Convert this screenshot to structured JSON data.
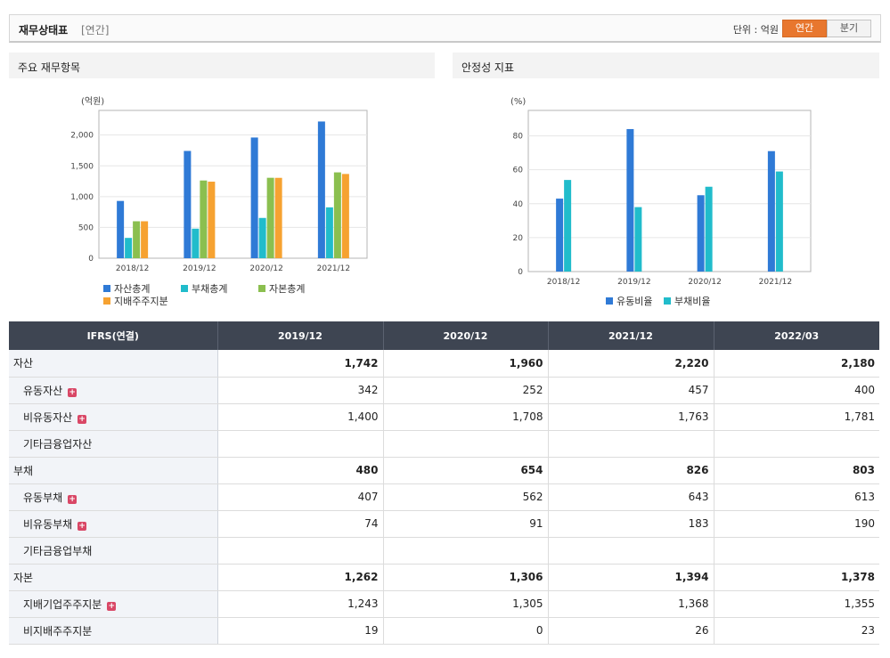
{
  "header": {
    "title": "재무상태표",
    "subtitle": "[연간]",
    "unit_label": "단위 : 억원",
    "toggle": [
      {
        "label": "연간",
        "active": true
      },
      {
        "label": "분기",
        "active": false
      }
    ]
  },
  "panels": {
    "left_title": "주요 재무항목",
    "right_title": "안정성 지표"
  },
  "chart_data": [
    {
      "type": "bar",
      "unit_label": "(억원)",
      "categories": [
        "2018/12",
        "2019/12",
        "2020/12",
        "2021/12"
      ],
      "ylim": [
        0,
        2400
      ],
      "yticks": [
        0,
        500,
        1000,
        1500,
        2000
      ],
      "ytick_labels": [
        "0",
        "500",
        "1,000",
        "1,500",
        "2,000"
      ],
      "series": [
        {
          "name": "자산총계",
          "color": "#2f7ad6",
          "values": [
            930,
            1742,
            1960,
            2220
          ]
        },
        {
          "name": "부채총계",
          "color": "#21bccb",
          "values": [
            330,
            480,
            654,
            826
          ]
        },
        {
          "name": "자본총계",
          "color": "#8bbf4f",
          "values": [
            600,
            1262,
            1306,
            1394
          ]
        },
        {
          "name": "지배주주지분",
          "color": "#f6a231",
          "values": [
            600,
            1243,
            1305,
            1368
          ]
        }
      ],
      "legend_position": "bottom-left",
      "grid": true
    },
    {
      "type": "bar",
      "unit_label": "(%)",
      "categories": [
        "2018/12",
        "2019/12",
        "2020/12",
        "2021/12"
      ],
      "ylim": [
        0,
        95
      ],
      "yticks": [
        0,
        20,
        40,
        60,
        80
      ],
      "ytick_labels": [
        "0",
        "20",
        "40",
        "60",
        "80"
      ],
      "series": [
        {
          "name": "유동비율",
          "color": "#2f7ad6",
          "values": [
            43,
            84,
            45,
            71
          ]
        },
        {
          "name": "부채비율",
          "color": "#21bccb",
          "values": [
            54,
            38,
            50,
            59
          ]
        }
      ],
      "legend_position": "bottom-center",
      "grid": true
    }
  ],
  "table": {
    "header": [
      "IFRS(연결)",
      "2019/12",
      "2020/12",
      "2021/12",
      "2022/03"
    ],
    "rows": [
      {
        "label": "자산",
        "level": 0,
        "plus": false,
        "values": [
          "1,742",
          "1,960",
          "2,220",
          "2,180"
        ]
      },
      {
        "label": "유동자산",
        "level": 1,
        "plus": true,
        "values": [
          "342",
          "252",
          "457",
          "400"
        ]
      },
      {
        "label": "비유동자산",
        "level": 1,
        "plus": true,
        "values": [
          "1,400",
          "1,708",
          "1,763",
          "1,781"
        ]
      },
      {
        "label": "기타금융업자산",
        "level": 1,
        "plus": false,
        "values": [
          "",
          "",
          "",
          ""
        ]
      },
      {
        "label": "부채",
        "level": 0,
        "plus": false,
        "values": [
          "480",
          "654",
          "826",
          "803"
        ]
      },
      {
        "label": "유동부채",
        "level": 1,
        "plus": true,
        "values": [
          "407",
          "562",
          "643",
          "613"
        ]
      },
      {
        "label": "비유동부채",
        "level": 1,
        "plus": true,
        "values": [
          "74",
          "91",
          "183",
          "190"
        ]
      },
      {
        "label": "기타금융업부채",
        "level": 1,
        "plus": false,
        "values": [
          "",
          "",
          "",
          ""
        ]
      },
      {
        "label": "자본",
        "level": 0,
        "plus": false,
        "values": [
          "1,262",
          "1,306",
          "1,394",
          "1,378"
        ]
      },
      {
        "label": "지배기업주주지분",
        "level": 1,
        "plus": true,
        "values": [
          "1,243",
          "1,305",
          "1,368",
          "1,355"
        ]
      },
      {
        "label": "비지배주주지분",
        "level": 1,
        "plus": false,
        "values": [
          "19",
          "0",
          "26",
          "23"
        ]
      }
    ]
  }
}
